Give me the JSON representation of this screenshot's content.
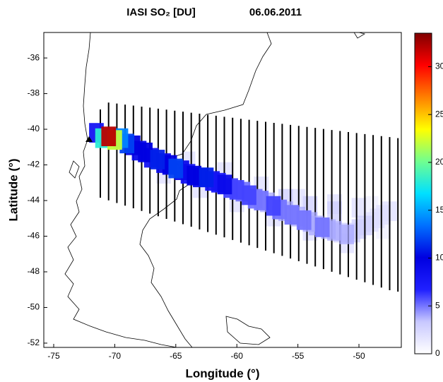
{
  "chart_data": {
    "type": "heatmap-map",
    "title": "IASI SO₂ [DU]",
    "subtitle": "06.06.2011",
    "x_label": "Longitude (°)",
    "y_label": "Latitude (°)",
    "xlim": [
      -75.81,
      -46.53
    ],
    "ylim": [
      -52.24,
      -34.57
    ],
    "xticks": [
      -75,
      -70,
      -65,
      -60,
      -55,
      -50
    ],
    "yticks": [
      -36,
      -38,
      -40,
      -42,
      -44,
      -46,
      -48,
      -50,
      -52
    ],
    "clim": [
      0,
      33.5
    ],
    "cticks": [
      0,
      5,
      10,
      15,
      20,
      25,
      30
    ],
    "colormap": [
      "#ffffff",
      "#c8c8ff",
      "#2020ff",
      "#0000e0",
      "#0070ff",
      "#00e0ff",
      "#70ff90",
      "#ffff00",
      "#ff8000",
      "#ff0000",
      "#800000"
    ],
    "x": [
      -71.5,
      -71,
      -70.5,
      -70,
      -69.5,
      -69,
      -68.5,
      -68,
      -67.5,
      -67,
      -66.5,
      -66,
      -65.5,
      -65,
      -64.5,
      -64,
      -63.5,
      -63,
      -62.5,
      -62,
      -61.5,
      -61,
      -60.5,
      -60,
      -59.5,
      -59,
      -58.5,
      -58,
      -57.5,
      -57,
      -56.5,
      -56,
      -55.5,
      -55,
      -54.5,
      -54,
      -53.5,
      -53,
      -52.5,
      -52,
      -51.5,
      -51,
      -50.5,
      -50,
      -49.5,
      -49,
      -48.5,
      -48,
      -47.5,
      -56,
      -54,
      -52,
      -50,
      -66,
      -63,
      -60,
      -57,
      -54,
      -51,
      -48,
      -64,
      -61,
      -58,
      -55,
      -52,
      -49
    ],
    "y": [
      -40.2,
      -40.5,
      -40.4,
      -40.6,
      -40.5,
      -40.8,
      -40.9,
      -41.2,
      -41.3,
      -41.6,
      -41.7,
      -41.9,
      -42,
      -42.2,
      -42.3,
      -42.5,
      -42.6,
      -42.7,
      -42.7,
      -42.9,
      -43,
      -43.1,
      -43.3,
      -43.4,
      -43.5,
      -43.7,
      -43.9,
      -44,
      -44.1,
      -44.3,
      -44.5,
      -44.6,
      -44.8,
      -44.9,
      -45.1,
      -45.2,
      -45.4,
      -45.5,
      -45.6,
      -45.7,
      -45.8,
      -45.9,
      -45.8,
      -45.6,
      -45.4,
      -45.2,
      -45,
      -44.8,
      -44.6,
      -43.9,
      -44.3,
      -44.6,
      -44.4,
      -42.5,
      -43.3,
      -44.1,
      -44.9,
      -45.7,
      -46.4,
      -45.6,
      -41.8,
      -42.4,
      -43.2,
      -43.9,
      -44.2,
      -44.3
    ],
    "values": [
      8,
      18,
      32,
      22,
      14,
      12,
      10,
      9,
      10,
      8,
      11,
      9,
      10,
      12,
      9,
      8,
      10,
      9,
      11,
      8,
      7,
      9,
      6,
      6,
      5,
      6,
      5,
      5,
      4,
      6,
      5,
      4,
      5,
      4,
      5,
      4,
      4,
      5,
      4,
      4,
      3,
      4,
      3,
      3,
      3,
      2,
      2,
      2,
      2,
      3,
      3,
      3,
      2,
      2,
      2,
      2,
      2,
      2,
      2,
      1,
      2,
      2,
      2,
      2,
      2,
      1
    ]
  }
}
